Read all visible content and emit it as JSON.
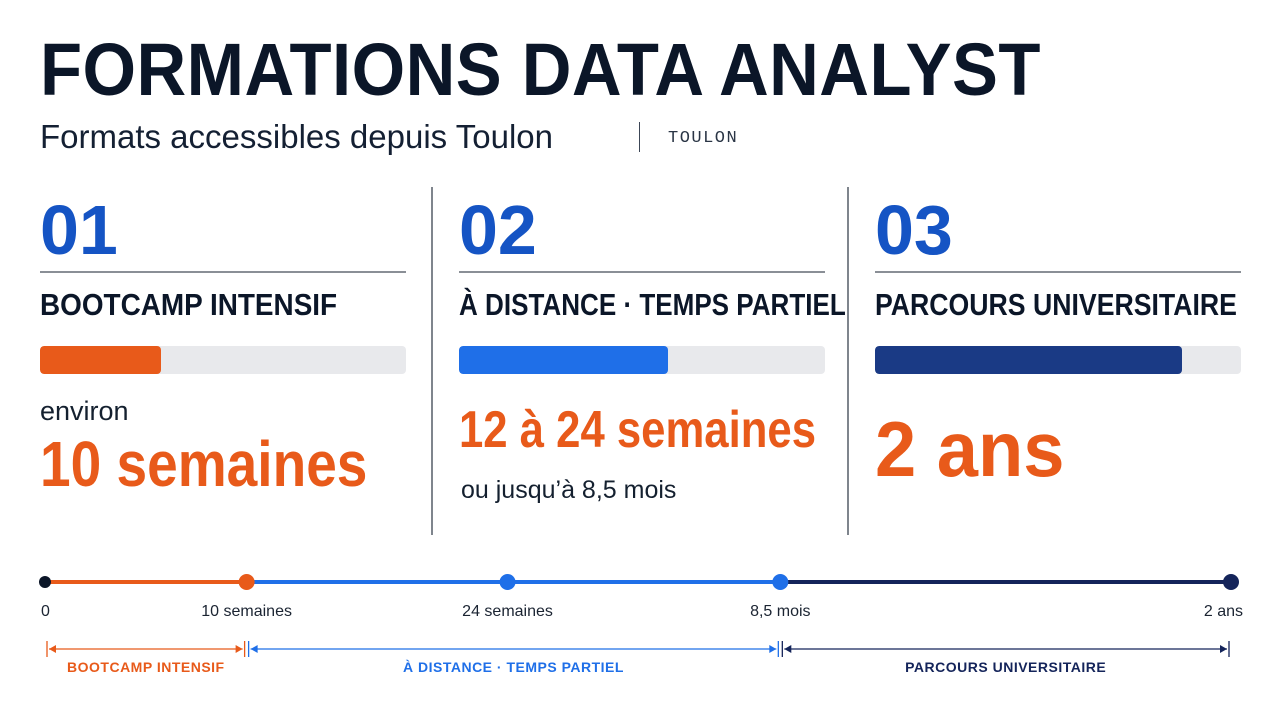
{
  "header": {
    "title": "FORMATIONS DATA ANALYST",
    "subtitle": "Formats accessibles depuis Toulon",
    "location": "TOULON"
  },
  "colors": {
    "orange": "#e85a1a",
    "blue": "#1f6fe8",
    "navy": "#1a3a85",
    "dark": "#0b1628",
    "track": "#e8e9ec"
  },
  "cards": [
    {
      "number": "01",
      "label": "BOOTCAMP INTENSIF",
      "bar_fraction": 0.33,
      "bar_color": "#e85a1a",
      "pre_text": "environ",
      "value": "10 semaines",
      "note": ""
    },
    {
      "number": "02",
      "label": "À DISTANCE · TEMPS PARTIEL",
      "bar_fraction": 0.57,
      "bar_color": "#1f6fe8",
      "pre_text": "",
      "value": "12 à 24 semaines",
      "note": "ou jusqu’à 8,5 mois"
    },
    {
      "number": "03",
      "label": "PARCOURS UNIVERSITAIRE",
      "bar_fraction": 0.84,
      "bar_color": "#1a3a85",
      "pre_text": "",
      "value": "2 ans",
      "note": ""
    }
  ],
  "chart_data": {
    "type": "timeline",
    "title": "",
    "ticks": [
      {
        "label": "0",
        "position": 0.0,
        "color": "#0b1628"
      },
      {
        "label": "10 semaines",
        "position": 0.17,
        "color": "#e85a1a"
      },
      {
        "label": "24 semaines",
        "position": 0.39,
        "color": "#1f6fe8"
      },
      {
        "label": "8,5 mois",
        "position": 0.62,
        "color": "#1f6fe8"
      },
      {
        "label": "2 ans",
        "position": 1.0,
        "color": "#14245a"
      }
    ],
    "segments": [
      {
        "from": 0.0,
        "to": 0.17,
        "color": "#e85a1a"
      },
      {
        "from": 0.17,
        "to": 0.62,
        "color": "#1f6fe8"
      },
      {
        "from": 0.62,
        "to": 1.0,
        "color": "#14245a"
      }
    ],
    "ranges": [
      {
        "label": "BOOTCAMP INTENSIF",
        "from": 0.0,
        "to": 0.17,
        "color": "#e85a1a"
      },
      {
        "label": "À DISTANCE · TEMPS PARTIEL",
        "from": 0.17,
        "to": 0.62,
        "color": "#1f6fe8"
      },
      {
        "label": "PARCOURS UNIVERSITAIRE",
        "from": 0.62,
        "to": 1.0,
        "color": "#14245a"
      }
    ]
  }
}
